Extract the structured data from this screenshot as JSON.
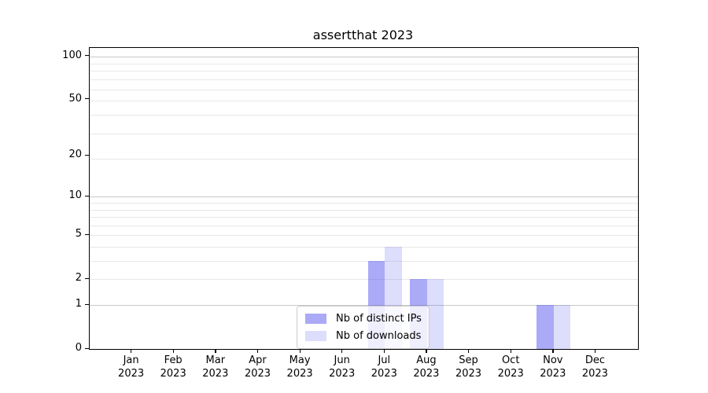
{
  "title": "assertthat 2023",
  "chart_data": {
    "type": "bar",
    "title": "assertthat 2023",
    "categories": [
      "Jan",
      "Feb",
      "Mar",
      "Apr",
      "May",
      "Jun",
      "Jul",
      "Aug",
      "Sep",
      "Oct",
      "Nov",
      "Dec"
    ],
    "year_label": "2023",
    "series": [
      {
        "name": "Nb of distinct IPs",
        "color": "rgba(85,85,238,0.5)",
        "values": [
          0,
          0,
          0,
          0,
          0,
          0,
          3,
          2,
          0,
          0,
          1,
          0
        ]
      },
      {
        "name": "Nb of downloads",
        "color": "rgba(85,85,238,0.2)",
        "values": [
          0,
          0,
          0,
          0,
          0,
          0,
          4,
          2,
          0,
          0,
          1,
          0
        ]
      }
    ],
    "y_axis": {
      "scale": "log1p",
      "ticks": [
        0,
        1,
        2,
        5,
        10,
        20,
        50,
        100
      ],
      "max_value": 114,
      "major_grid_values": [
        1,
        10,
        100
      ],
      "minor_grid_values": [
        2,
        3,
        4,
        5,
        6,
        7,
        8,
        9,
        19,
        29,
        39,
        49,
        59,
        69,
        79,
        89
      ]
    },
    "x_axis": {
      "tick_count": 12
    },
    "grid": {
      "minor_color": "#e8e8e8",
      "major_color": "#c9c9c9"
    },
    "legend": {
      "position": "bottom-center"
    },
    "spine_color": "#000000",
    "ylim": [
      0,
      114
    ],
    "xlabel": "",
    "ylabel": ""
  }
}
